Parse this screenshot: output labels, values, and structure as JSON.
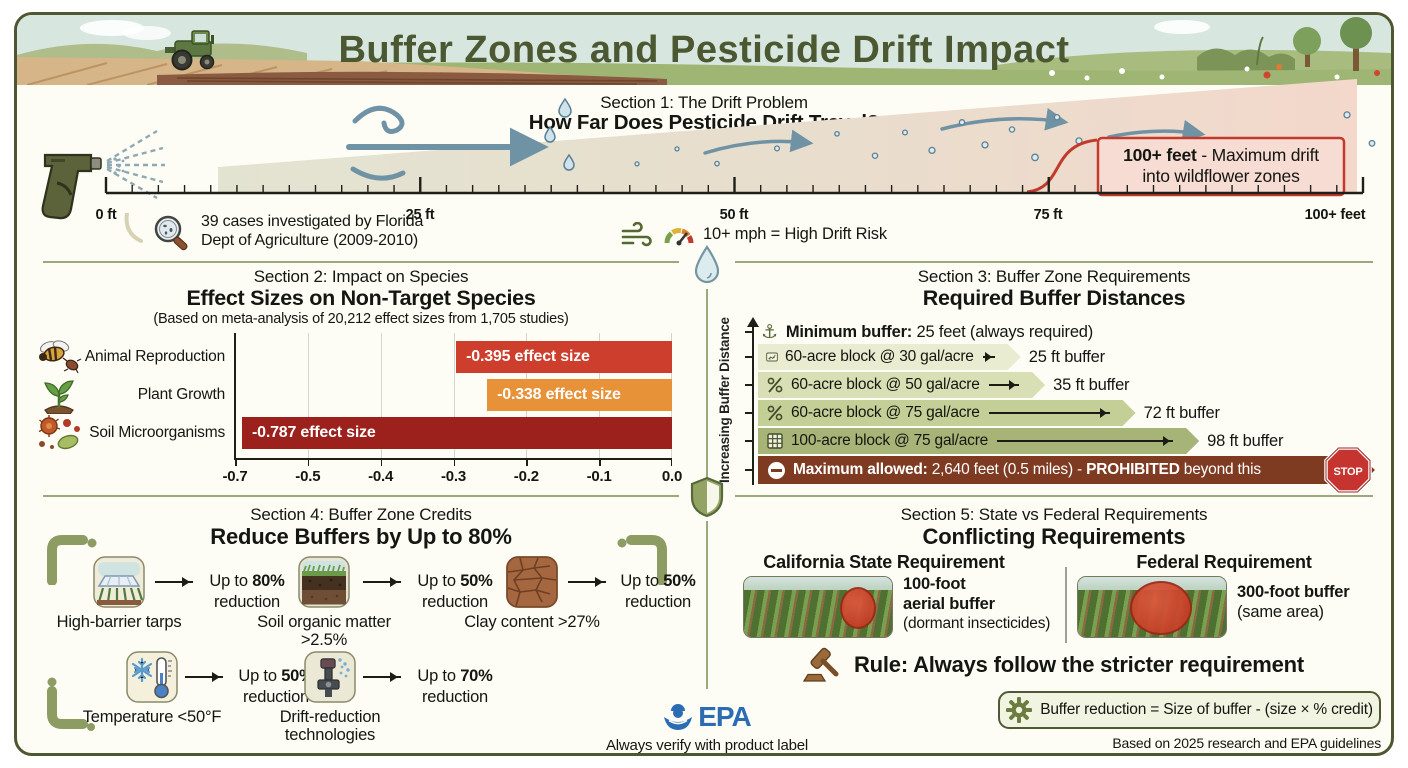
{
  "header": {
    "title": "Buffer Zones and Pesticide Drift Impact"
  },
  "section1": {
    "kicker": "Section 1: The Drift Problem",
    "title": "How Far Does Pesticide Drift Travel?",
    "ruler_labels": [
      "0 ft",
      "25 ft",
      "50 ft",
      "75 ft",
      "100+ feet"
    ],
    "max_drift_box": {
      "bold": "100+ feet",
      "rest": " - Maximum drift",
      "line2": "into wildflower zones"
    },
    "cases_note": {
      "icon": "magnifier-icon",
      "line1": "39 cases investigated by Florida",
      "line2": "Dept of Agriculture (2009-2010)"
    },
    "wind_note": {
      "icons": [
        "wind-icon",
        "gauge-icon"
      ],
      "text": "10+ mph = High Drift Risk"
    }
  },
  "section2": {
    "kicker": "Section 2: Impact on Species",
    "title": "Effect Sizes on Non-Target Species",
    "subtitle": "(Based on meta-analysis of 20,212 effect sizes from 1,705 studies)",
    "row_icons": [
      "bee-and-bug-icon",
      "seedling-icon",
      "microbes-icon"
    ]
  },
  "chart_data": [
    {
      "type": "bar",
      "orientation": "horizontal",
      "title": "Effect Sizes on Non-Target Species",
      "categories": [
        "Animal Reproduction",
        "Plant Growth",
        "Soil Microorganisms"
      ],
      "values": [
        -0.395,
        -0.338,
        -0.787
      ],
      "bar_labels": [
        "-0.395 effect size",
        "-0.338 effect size",
        "-0.787 effect size"
      ],
      "bar_colors": [
        "#ce3e2d",
        "#e79138",
        "#9c211d"
      ],
      "x_ticks": [
        "-0.7",
        "-0.5",
        "-0.4",
        "-0.3",
        "-0.2",
        "-0.1",
        "0.0"
      ],
      "xlim": [
        -0.8,
        0
      ],
      "grid": true,
      "legend": false
    },
    {
      "type": "bar",
      "orientation": "horizontal",
      "title": "Required Buffer Distances",
      "categories": [
        "60-acre block @ 30 gal/acre",
        "60-acre block @ 50 gal/acre",
        "60-acre block @ 75 gal/acre",
        "100-acre block @ 75 gal/acre"
      ],
      "values": [
        25,
        35,
        72,
        98
      ],
      "value_labels": [
        "25 ft buffer",
        "35 ft buffer",
        "72 ft buffer",
        "98 ft buffer"
      ],
      "bar_colors": [
        "#e9ecd0",
        "#d8dfb4",
        "#c3cf96",
        "#a6b577"
      ],
      "ylabel": "Increasing Buffer Distance"
    }
  ],
  "section3": {
    "kicker": "Section 3: Buffer Zone Requirements",
    "title": "Required Buffer Distances",
    "axis_label": "Increasing Buffer Distance",
    "minimum": {
      "icon": "anchor-icon",
      "bold": "Minimum buffer:",
      "rest": " 25 feet (always required)"
    },
    "row_icons": [
      "field-chart-icon",
      "rate-percent-icon",
      "rate-percent-icon",
      "field-grid-icon"
    ],
    "max_row": {
      "icon": "no-entry-icon",
      "bold1": "Maximum allowed:",
      "rest1": " 2,640 feet (0.5 miles) - ",
      "bold2": "PROHIBITED",
      "rest2": " beyond this",
      "stop_label": "STOP"
    }
  },
  "section4": {
    "kicker": "Section 4: Buffer Zone Credits",
    "title": "Reduce Buffers by Up to 80%",
    "credits": [
      {
        "icon": "tarp-field-icon",
        "label": "High-barrier tarps",
        "pre": "Up to ",
        "pct": "80%",
        "suffix": "reduction"
      },
      {
        "icon": "soil-layers-icon",
        "label": "Soil organic matter >2.5%",
        "pre": "Up to ",
        "pct": "50%",
        "suffix": "reduction"
      },
      {
        "icon": "clay-icon",
        "label": "Clay content >27%",
        "pre": "Up to ",
        "pct": "50%",
        "suffix": "reduction"
      },
      {
        "icon": "thermometer-snowflake-icon",
        "label": "Temperature <50°F",
        "pre": "Up to ",
        "pct": "50%",
        "suffix": "reduction"
      },
      {
        "icon": "spray-nozzle-icon",
        "label": "Drift-reduction technologies",
        "pre": "Up to ",
        "pct": "70%",
        "suffix": "reduction"
      }
    ]
  },
  "section5": {
    "kicker": "Section 5: State vs Federal Requirements",
    "title": "Conflicting Requirements",
    "california": {
      "header": "California State Requirement",
      "line1": "100-foot",
      "line2": "aerial buffer",
      "line3": "(dormant insecticides)"
    },
    "federal": {
      "header": "Federal Requirement",
      "line1": "300-foot buffer",
      "line2": "(same area)"
    },
    "rule": {
      "icon": "gavel-icon",
      "text": "Rule: Always follow the stricter requirement"
    },
    "formula": {
      "icon": "gear-icon",
      "text": "Buffer reduction = Size of buffer - (size × % credit)"
    },
    "citation": "Based on 2025 research and EPA guidelines"
  },
  "footer": {
    "epa_logo_text": "EPA",
    "verify_note": "Always verify with product label"
  },
  "colors": {
    "accent_olive": "#5a6638",
    "alert_red": "#c23a2b",
    "bar_red": "#ce3e2d",
    "bar_orange": "#e79138",
    "bar_dark_red": "#9c211d",
    "max_bar_maroon": "#7e3b22",
    "epa_blue": "#2b6cb3"
  }
}
